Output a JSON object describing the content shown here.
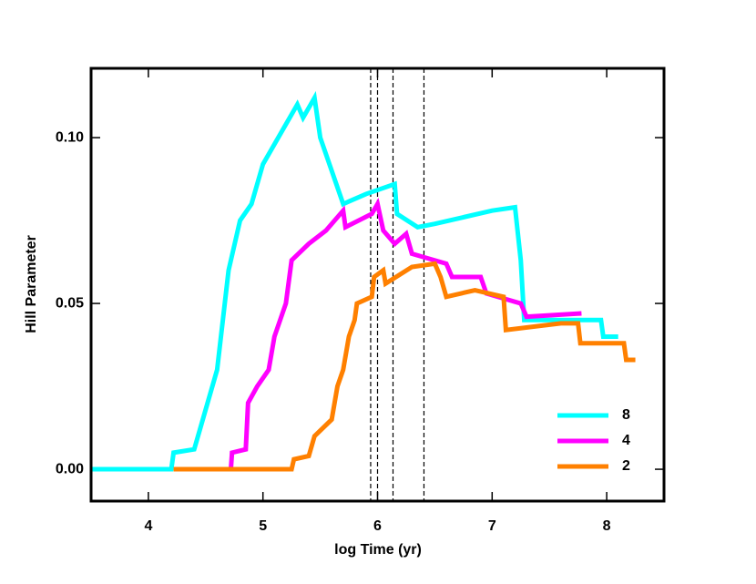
{
  "chart_data": {
    "type": "line",
    "xlabel": "log Time (yr)",
    "ylabel": "Hill Parameter",
    "xlim": [
      3.5,
      8.5
    ],
    "ylim": [
      -0.0096,
      0.1209
    ],
    "xticks": [
      4,
      5,
      6,
      7,
      8
    ],
    "yticks": [
      {
        "value": 0,
        "label": "0.00"
      },
      {
        "value": 0.05,
        "label": "0.05"
      },
      {
        "value": 0.1,
        "label": "0.10"
      }
    ],
    "vlines": [
      5.94,
      6.0,
      6.135,
      6.405
    ],
    "legend": "lower right",
    "series": [
      {
        "name": "8",
        "color": "#00ffff",
        "x": [
          3.5,
          4.2,
          4.22,
          4.4,
          4.45,
          4.6,
          4.7,
          4.8,
          4.9,
          5.0,
          5.1,
          5.2,
          5.3,
          5.35,
          5.45,
          5.5,
          5.6,
          5.7,
          5.9,
          6.15,
          6.17,
          6.35,
          6.5,
          7.0,
          7.2,
          7.25,
          7.28,
          7.95,
          7.97,
          8.1
        ],
        "values": [
          0,
          0,
          0.005,
          0.006,
          0.012,
          0.03,
          0.06,
          0.075,
          0.08,
          0.092,
          0.098,
          0.104,
          0.11,
          0.106,
          0.112,
          0.1,
          0.09,
          0.08,
          0.083,
          0.086,
          0.077,
          0.073,
          0.074,
          0.078,
          0.079,
          0.063,
          0.045,
          0.045,
          0.04,
          0.04
        ]
      },
      {
        "name": "4",
        "color": "#ff00ff",
        "x": [
          4.72,
          4.73,
          4.85,
          4.87,
          4.95,
          5.05,
          5.1,
          5.2,
          5.25,
          5.4,
          5.55,
          5.7,
          5.72,
          5.95,
          6.0,
          6.05,
          6.15,
          6.25,
          6.3,
          6.6,
          6.65,
          6.9,
          6.95,
          7.25,
          7.3,
          7.78
        ],
        "values": [
          0,
          0.005,
          0.006,
          0.02,
          0.025,
          0.03,
          0.04,
          0.05,
          0.063,
          0.068,
          0.072,
          0.078,
          0.073,
          0.077,
          0.08,
          0.072,
          0.068,
          0.071,
          0.065,
          0.062,
          0.058,
          0.058,
          0.053,
          0.05,
          0.046,
          0.047
        ]
      },
      {
        "name": "2",
        "color": "#ff8000",
        "x": [
          4.22,
          5.25,
          5.27,
          5.4,
          5.45,
          5.6,
          5.65,
          5.7,
          5.75,
          5.8,
          5.82,
          5.95,
          5.97,
          6.05,
          6.07,
          6.3,
          6.5,
          6.55,
          6.6,
          6.85,
          7.1,
          7.12,
          7.6,
          7.75,
          7.77,
          8.15,
          8.17,
          8.25
        ],
        "values": [
          0,
          0,
          0.003,
          0.004,
          0.01,
          0.015,
          0.025,
          0.03,
          0.04,
          0.045,
          0.05,
          0.052,
          0.058,
          0.06,
          0.056,
          0.061,
          0.062,
          0.058,
          0.052,
          0.054,
          0.052,
          0.042,
          0.044,
          0.044,
          0.038,
          0.038,
          0.033,
          0.033
        ]
      }
    ]
  }
}
